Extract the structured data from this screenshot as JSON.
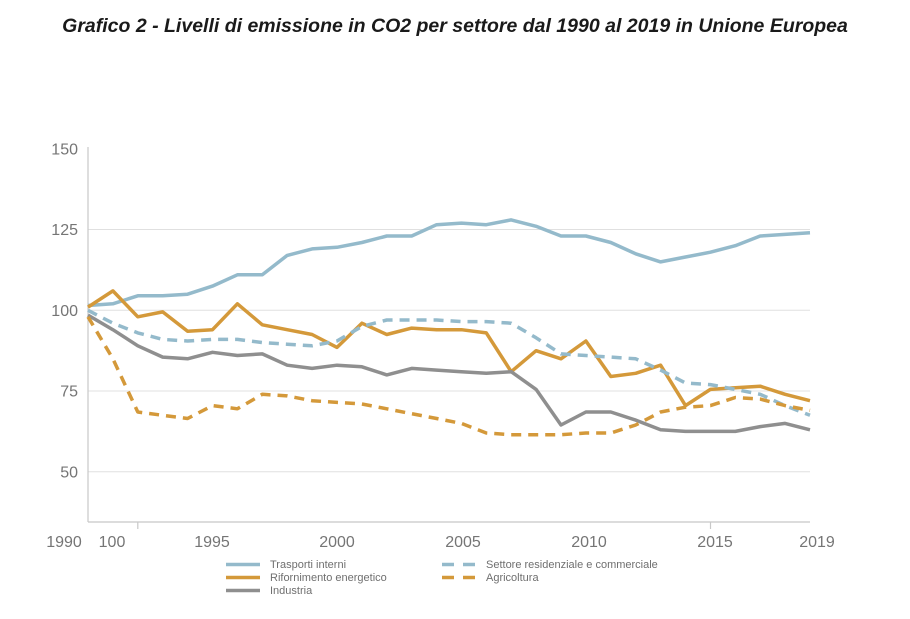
{
  "chart_data": {
    "type": "line",
    "title": "Grafico 2 - Livelli di emissione in CO2 per settore dal 1990 al 2019 in Unione Europea",
    "xlabel": "",
    "ylabel": "",
    "x": [
      1990,
      1991,
      1992,
      1993,
      1994,
      1995,
      1996,
      1997,
      1998,
      1999,
      2000,
      2001,
      2002,
      2003,
      2004,
      2005,
      2006,
      2007,
      2008,
      2009,
      2010,
      2011,
      2012,
      2013,
      2014,
      2015,
      2016,
      2017,
      2018,
      2019
    ],
    "x_axis_labels": [
      "1990",
      "100",
      "1995",
      "2000",
      "2005",
      "2010",
      "2015",
      "2019"
    ],
    "y_ticks": [
      150,
      125,
      100,
      75,
      50
    ],
    "ylim": [
      44,
      150
    ],
    "grid": true,
    "legend_position": "bottom",
    "series": [
      {
        "name": "Trasporti interni",
        "style": "solid",
        "color": "#94bacb",
        "values": [
          101.5,
          102,
          104.5,
          104.5,
          105,
          107.5,
          111,
          111,
          117,
          119,
          119.5,
          121,
          123,
          123,
          126.5,
          127,
          126.5,
          128,
          126,
          123,
          123,
          121,
          117.5,
          115,
          116.5,
          118,
          120,
          123,
          123.5,
          124
        ]
      },
      {
        "name": "Rifornimento energetico",
        "style": "solid",
        "color": "#d4993a",
        "values": [
          101,
          106,
          98,
          99.5,
          93.5,
          94,
          102,
          95.5,
          94,
          92.5,
          88.5,
          96,
          92.5,
          94.5,
          94,
          94,
          93,
          81,
          87.5,
          85,
          90.5,
          79.5,
          80.5,
          83,
          70.5,
          75.5,
          76,
          76.5,
          74,
          72
        ]
      },
      {
        "name": "Industria",
        "style": "solid",
        "color": "#8f8f8f",
        "values": [
          98.5,
          94,
          89,
          85.5,
          85,
          87,
          86,
          86.5,
          83,
          82,
          83,
          82.5,
          80,
          82,
          81.5,
          81,
          80.5,
          81,
          75.5,
          64.5,
          68.5,
          68.5,
          66,
          63,
          62.5,
          62.5,
          62.5,
          64,
          65,
          63
        ]
      },
      {
        "name": "Settore residenziale e commerciale",
        "style": "dashed",
        "color": "#94bacb",
        "values": [
          100,
          96,
          93,
          91,
          90.5,
          91,
          91,
          90,
          89.5,
          89,
          90.5,
          95,
          97,
          97,
          97,
          96.5,
          96.5,
          96,
          91.5,
          86.5,
          86,
          85.5,
          85,
          81.5,
          77.5,
          77,
          75.5,
          74,
          70.5,
          67.5
        ]
      },
      {
        "name": "Agricoltura",
        "style": "dashed",
        "color": "#d4993a",
        "values": [
          98,
          85,
          68.5,
          67.5,
          66.5,
          70.5,
          69.5,
          74,
          73.5,
          72,
          71.5,
          71,
          69.5,
          68,
          66.5,
          65,
          62,
          61.5,
          61.5,
          61.5,
          62,
          62,
          64.5,
          68.5,
          70,
          70.5,
          73,
          72.5,
          70.5,
          69
        ]
      }
    ]
  },
  "style": {
    "grid_color": "#e0e0e0",
    "axis_color": "#c8c8c8",
    "tick_label_color": "#757575",
    "legend_text_color": "#6f6f6f",
    "title_color": "#1a1a1a"
  }
}
